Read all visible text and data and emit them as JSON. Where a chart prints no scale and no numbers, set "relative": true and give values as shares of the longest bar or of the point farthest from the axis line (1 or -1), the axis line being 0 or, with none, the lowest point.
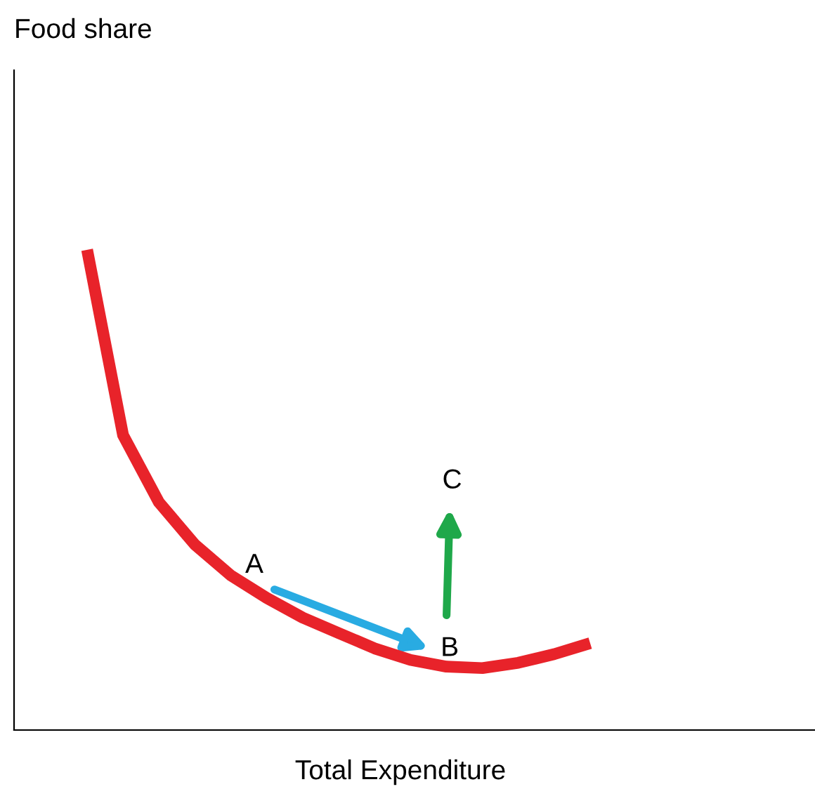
{
  "chart_data": {
    "type": "line",
    "relative": true,
    "xlabel": "Total Expenditure",
    "categories": [
      null,
      null,
      null,
      null,
      null,
      null,
      null,
      null,
      null,
      null,
      null,
      null,
      null,
      null,
      null
    ],
    "series": [
      {
        "color": "#e8232a",
        "values": [
          1,
          0.614,
          0.474,
          0.386,
          0.322,
          0.275,
          0.234,
          0.202,
          0.17,
          0.146,
          0.132,
          0.129,
          0.14,
          0.158,
          0.181
        ]
      }
    ],
    "annotations": [
      "Food share",
      "A",
      "B",
      "C"
    ]
  }
}
